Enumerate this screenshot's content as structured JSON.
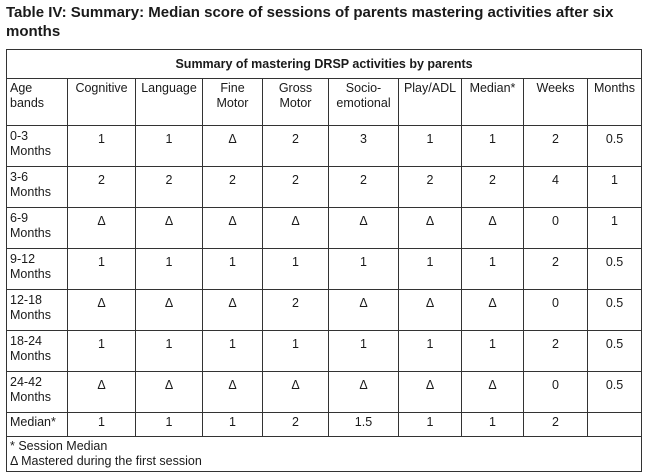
{
  "title": "Table IV: Summary: Median score of sessions of parents mastering activities after six months",
  "table": {
    "caption": "Summary of mastering DRSP activities by parents",
    "headers": [
      "Age bands",
      "Cognitive",
      "Language",
      "Fine Motor",
      "Gross Motor",
      "Socio-emotional",
      "Play/ADL",
      "Median*",
      "Weeks",
      "Months"
    ],
    "rows": [
      [
        "0-3 Months",
        "1",
        "1",
        "Δ",
        "2",
        "3",
        "1",
        "1",
        "2",
        "0.5"
      ],
      [
        "3-6 Months",
        "2",
        "2",
        "2",
        "2",
        "2",
        "2",
        "2",
        "4",
        "1"
      ],
      [
        "6-9 Months",
        "Δ",
        "Δ",
        "Δ",
        "Δ",
        "Δ",
        "Δ",
        "Δ",
        "0",
        "1"
      ],
      [
        "9-12 Months",
        "1",
        "1",
        "1",
        "1",
        "1",
        "1",
        "1",
        "2",
        "0.5"
      ],
      [
        "12-18 Months",
        "Δ",
        "Δ",
        "Δ",
        "2",
        "Δ",
        "Δ",
        "Δ",
        "0",
        "0.5"
      ],
      [
        "18-24 Months",
        "1",
        "1",
        "1",
        "1",
        "1",
        "1",
        "1",
        "2",
        "0.5"
      ],
      [
        "24-42 Months",
        "Δ",
        "Δ",
        "Δ",
        "Δ",
        "Δ",
        "Δ",
        "Δ",
        "0",
        "0.5"
      ]
    ],
    "median_row": [
      "Median*",
      "1",
      "1",
      "1",
      "2",
      "1.5",
      "1",
      "1",
      "2",
      ""
    ],
    "footnotes": [
      "* Session Median",
      "Δ Mastered during the first session"
    ]
  }
}
